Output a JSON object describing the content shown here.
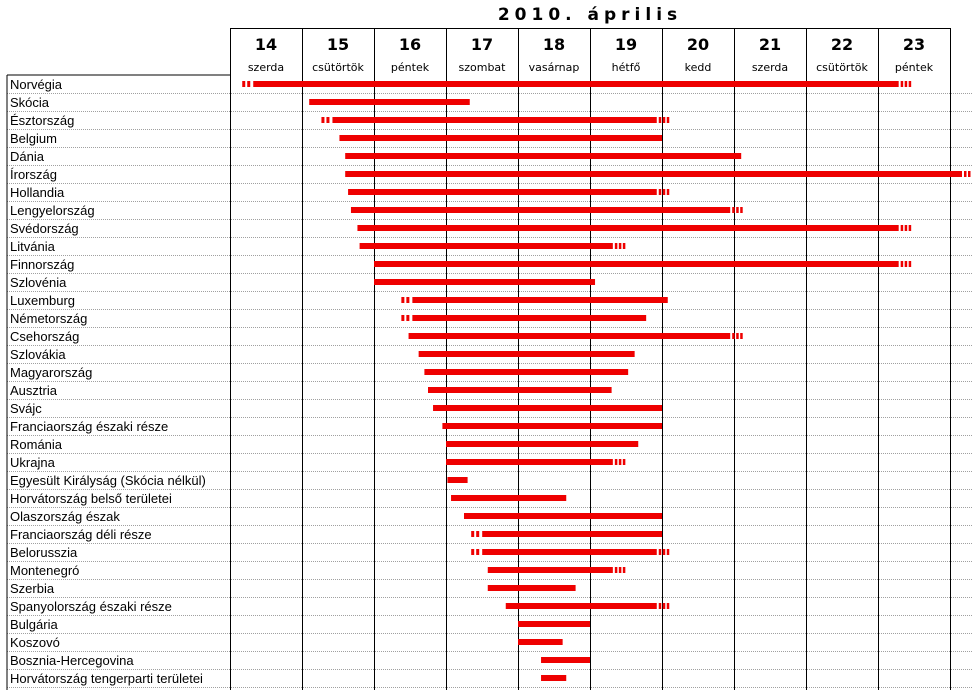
{
  "chart_data": {
    "type": "gantt",
    "title": "2010. április",
    "colors": {
      "bar": "#ee0000",
      "grid": "#000000",
      "row_line": "#a0a0a0"
    },
    "days": [
      {
        "num": "14",
        "name": "szerda"
      },
      {
        "num": "15",
        "name": "csütörtök"
      },
      {
        "num": "16",
        "name": "péntek"
      },
      {
        "num": "17",
        "name": "szombat"
      },
      {
        "num": "18",
        "name": "vasárnap"
      },
      {
        "num": "19",
        "name": "hétfő"
      },
      {
        "num": "20",
        "name": "kedd"
      },
      {
        "num": "21",
        "name": "szerda"
      },
      {
        "num": "22",
        "name": "csütörtök"
      },
      {
        "num": "23",
        "name": "péntek"
      }
    ],
    "x_range": [
      14,
      24
    ],
    "rows": [
      {
        "label": "Norvégia",
        "start": 14.17,
        "end": 23.44,
        "dash_start": true,
        "dash_end": true
      },
      {
        "label": "Skócia",
        "start": 15.1,
        "end": 17.33,
        "dash_start": false,
        "dash_end": false
      },
      {
        "label": "Észtország",
        "start": 15.27,
        "end": 20.08,
        "dash_start": true,
        "dash_end": true
      },
      {
        "label": "Belgium",
        "start": 15.52,
        "end": 20.0,
        "dash_start": false,
        "dash_end": false
      },
      {
        "label": "Dánia",
        "start": 15.6,
        "end": 21.1,
        "dash_start": false,
        "dash_end": false
      },
      {
        "label": "Írország",
        "start": 15.6,
        "end": 24.4,
        "dash_start": false,
        "dash_end": true
      },
      {
        "label": "Hollandia",
        "start": 15.64,
        "end": 20.08,
        "dash_start": false,
        "dash_end": true
      },
      {
        "label": "Lengyelország",
        "start": 15.68,
        "end": 21.1,
        "dash_start": false,
        "dash_end": true
      },
      {
        "label": "Svédország",
        "start": 15.77,
        "end": 23.44,
        "dash_start": false,
        "dash_end": true
      },
      {
        "label": "Litvánia",
        "start": 15.8,
        "end": 19.47,
        "dash_start": false,
        "dash_end": true
      },
      {
        "label": "Finnország",
        "start": 16.0,
        "end": 23.44,
        "dash_start": false,
        "dash_end": true
      },
      {
        "label": "Szlovénia",
        "start": 16.0,
        "end": 19.07,
        "dash_start": false,
        "dash_end": false
      },
      {
        "label": "Luxemburg",
        "start": 16.38,
        "end": 20.08,
        "dash_start": true,
        "dash_end": false
      },
      {
        "label": "Németország",
        "start": 16.38,
        "end": 19.78,
        "dash_start": true,
        "dash_end": false
      },
      {
        "label": "Csehország",
        "start": 16.48,
        "end": 21.1,
        "dash_start": false,
        "dash_end": true
      },
      {
        "label": "Szlovákia",
        "start": 16.62,
        "end": 19.62,
        "dash_start": false,
        "dash_end": false
      },
      {
        "label": "Magyarország",
        "start": 16.7,
        "end": 19.53,
        "dash_start": false,
        "dash_end": false
      },
      {
        "label": "Ausztria",
        "start": 16.75,
        "end": 19.3,
        "dash_start": false,
        "dash_end": false
      },
      {
        "label": "Svájc",
        "start": 16.82,
        "end": 20.0,
        "dash_start": false,
        "dash_end": false
      },
      {
        "label": "Franciaország északi része",
        "start": 16.95,
        "end": 20.0,
        "dash_start": false,
        "dash_end": false
      },
      {
        "label": "Románia",
        "start": 17.0,
        "end": 19.67,
        "dash_start": false,
        "dash_end": false
      },
      {
        "label": "Ukrajna",
        "start": 17.0,
        "end": 19.47,
        "dash_start": false,
        "dash_end": true
      },
      {
        "label": "Egyesült Királyság (Skócia nélkül)",
        "start": 17.02,
        "end": 17.3,
        "dash_start": false,
        "dash_end": false
      },
      {
        "label": "Horvátország belső területei",
        "start": 17.07,
        "end": 18.67,
        "dash_start": false,
        "dash_end": false
      },
      {
        "label": "Olaszország észak",
        "start": 17.25,
        "end": 20.0,
        "dash_start": false,
        "dash_end": false
      },
      {
        "label": "Franciaország déli része",
        "start": 17.35,
        "end": 20.0,
        "dash_start": true,
        "dash_end": false
      },
      {
        "label": "Belorusszia",
        "start": 17.35,
        "end": 20.08,
        "dash_start": true,
        "dash_end": true
      },
      {
        "label": "Montenegró",
        "start": 17.58,
        "end": 19.47,
        "dash_start": false,
        "dash_end": true
      },
      {
        "label": "Szerbia",
        "start": 17.58,
        "end": 18.8,
        "dash_start": false,
        "dash_end": false
      },
      {
        "label": "Spanyolország északi része",
        "start": 17.83,
        "end": 20.08,
        "dash_start": false,
        "dash_end": true
      },
      {
        "label": "Bulgária",
        "start": 18.0,
        "end": 19.0,
        "dash_start": false,
        "dash_end": false
      },
      {
        "label": "Koszovó",
        "start": 18.0,
        "end": 18.62,
        "dash_start": false,
        "dash_end": false
      },
      {
        "label": "Bosznia-Hercegovina",
        "start": 18.32,
        "end": 19.0,
        "dash_start": false,
        "dash_end": false
      },
      {
        "label": "Horvátország tengerparti területei",
        "start": 18.32,
        "end": 18.67,
        "dash_start": false,
        "dash_end": false
      }
    ]
  }
}
